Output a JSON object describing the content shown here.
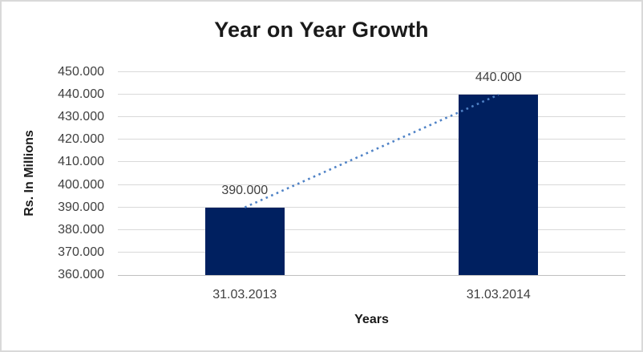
{
  "window": {
    "background": "#ffffff",
    "border_color": "#d9d9d9"
  },
  "chart_data": {
    "type": "bar",
    "title": "Year on Year Growth",
    "xlabel": "Years",
    "ylabel": "Rs. In Millions",
    "categories": [
      "31.03.2013",
      "31.03.2014"
    ],
    "values": [
      390,
      440
    ],
    "value_labels": [
      "390.000",
      "440.000"
    ],
    "ylim": [
      360,
      450
    ],
    "yticks": [
      {
        "value": 360,
        "label": "360.000"
      },
      {
        "value": 370,
        "label": "370.000"
      },
      {
        "value": 380,
        "label": "380.000"
      },
      {
        "value": 390,
        "label": "390.000"
      },
      {
        "value": 400,
        "label": "400.000"
      },
      {
        "value": 410,
        "label": "410.000"
      },
      {
        "value": 420,
        "label": "420.000"
      },
      {
        "value": 430,
        "label": "430.000"
      },
      {
        "value": 440,
        "label": "440.000"
      },
      {
        "value": 450,
        "label": "450.000"
      }
    ],
    "grid": true,
    "legend": "none",
    "trendline": {
      "style": "dotted",
      "from_category_index": 0,
      "to_category_index": 1
    },
    "colors": {
      "bar": "#002060",
      "trendline": "#4f82c6",
      "gridline": "#d9d9d9",
      "axis_line": "#bfbfbf",
      "tick_text": "#404040",
      "title_text": "#1a1a1a",
      "axis_title_text": "#1a1a1a"
    }
  }
}
